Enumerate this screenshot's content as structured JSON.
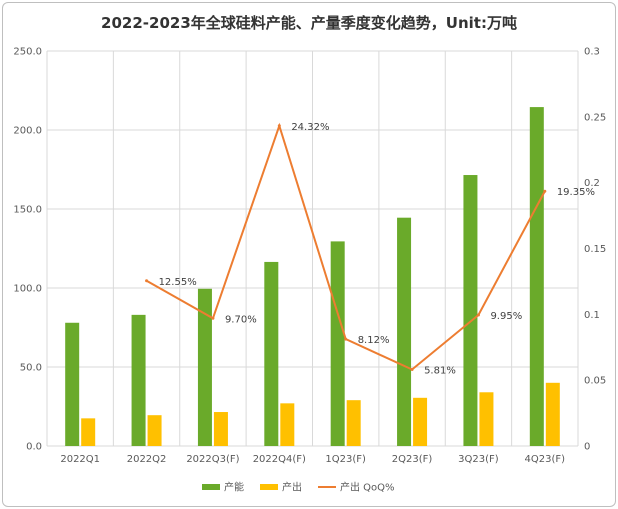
{
  "chart_data": {
    "type": "bar",
    "title": "2022-2023年全球硅料产能、产量季度变化趋势，Unit:万吨",
    "categories": [
      "2022Q1",
      "2022Q2",
      "2022Q3(F)",
      "2022Q4(F)",
      "1Q23(F)",
      "2Q23(F)",
      "3Q23(F)",
      "4Q23(F)"
    ],
    "series": [
      {
        "name": "产能",
        "type": "bar",
        "axis": "left",
        "color": "#6aaa2a",
        "values": [
          78,
          83,
          99.5,
          116.5,
          129.5,
          144.5,
          171.5,
          214.5
        ]
      },
      {
        "name": "产出",
        "type": "bar",
        "axis": "left",
        "color": "#ffc000",
        "values": [
          17.5,
          19.5,
          21.5,
          27,
          29,
          30.5,
          34,
          40
        ]
      },
      {
        "name": "产出 QoQ%",
        "type": "line",
        "axis": "right",
        "color": "#ed7d31",
        "values": [
          null,
          0.1255,
          0.097,
          0.2432,
          0.0812,
          0.0581,
          0.0995,
          0.1935
        ],
        "labels": [
          "",
          "12.55%",
          "9.70%",
          "24.32%",
          "8.12%",
          "5.81%",
          "9.95%",
          "19.35%"
        ]
      }
    ],
    "y_left": {
      "min": 0,
      "max": 250,
      "step": 50,
      "tick_labels": [
        "0.0",
        "50.0",
        "100.0",
        "150.0",
        "200.0",
        "250.0"
      ]
    },
    "y_right": {
      "min": 0,
      "max": 0.3,
      "step": 0.05,
      "tick_labels": [
        "0",
        "0.05",
        "0.1",
        "0.15",
        "0.2",
        "0.25",
        "0.3"
      ]
    },
    "grid": true,
    "legend_position": "bottom"
  }
}
